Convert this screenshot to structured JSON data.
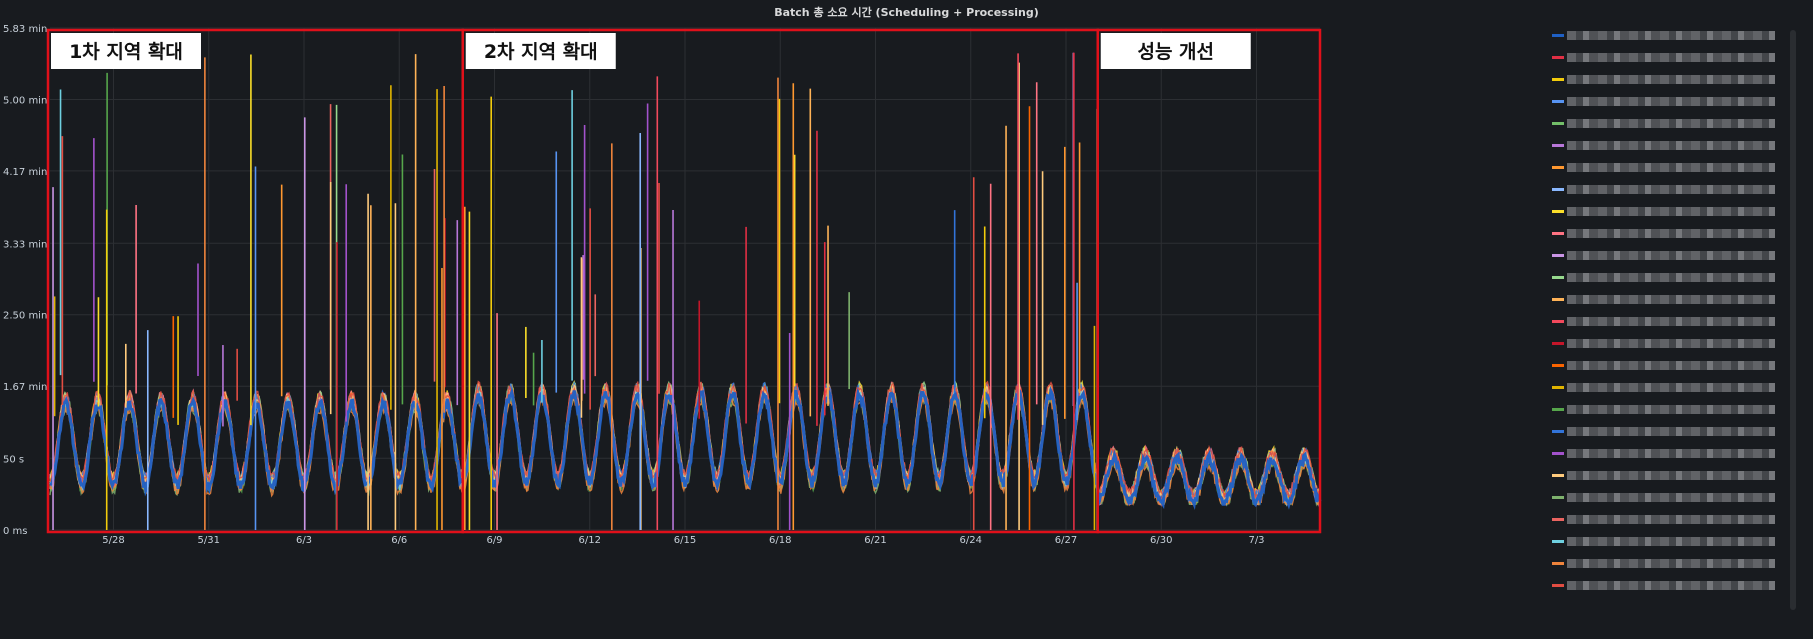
{
  "panel": {
    "title": "Batch 총 소요 시간 (Scheduling + Processing)"
  },
  "chart_data": {
    "type": "line",
    "title": "Batch 총 소요 시간 (Scheduling + Processing)",
    "y_tick_labels": [
      "0 ms",
      "50 s",
      "1.67 min",
      "2.50 min",
      "3.33 min",
      "4.17 min",
      "5.00 min",
      "5.83 min"
    ],
    "y_tick_values_min": [
      0,
      0.833,
      1.67,
      2.5,
      3.33,
      4.17,
      5.0,
      5.83
    ],
    "ylim_min": [
      0,
      5.83
    ],
    "x_tick_labels": [
      "5/28",
      "5/31",
      "6/3",
      "6/6",
      "6/9",
      "6/12",
      "6/15",
      "6/18",
      "6/21",
      "6/24",
      "6/27",
      "6/30",
      "7/3"
    ],
    "x_start": "5/26",
    "x_end": "7/5",
    "grid": true,
    "legend": "right",
    "phases": [
      {
        "label": "1차 지역 확대",
        "start": "5/26",
        "end": "6/8",
        "baseline_min": 0.9,
        "amplitude_min": 0.55
      },
      {
        "label": "2차 지역 확대",
        "start": "6/8",
        "end": "6/28",
        "baseline_min": 0.95,
        "amplitude_min": 0.6
      },
      {
        "label": "성능 개선",
        "start": "6/28",
        "end": "7/5",
        "baseline_min": 0.55,
        "amplitude_min": 0.25
      }
    ],
    "series_colors": [
      "#1f60c4",
      "#e02f44",
      "#f2cc0c",
      "#5794f2",
      "#73bf69",
      "#b877d9",
      "#ff9830",
      "#8ab8ff",
      "#fade2a",
      "#ff7383",
      "#ca95e5",
      "#96d98d",
      "#ffb357",
      "#f2495c",
      "#c4162a",
      "#fa6400",
      "#e0b400",
      "#56a64b",
      "#3274d9",
      "#a352cc",
      "#ffcb7d",
      "#7eb26d",
      "#ea6460",
      "#6ed0e0",
      "#ef843c",
      "#e24d42"
    ]
  },
  "legend": {
    "entry_count": 26
  },
  "colors": {
    "panel_bg": "#181b1f",
    "grid": "#2c2f33",
    "highlight_box": "#e0101a",
    "label_box_bg": "#ffffff",
    "label_text": "#111111"
  }
}
